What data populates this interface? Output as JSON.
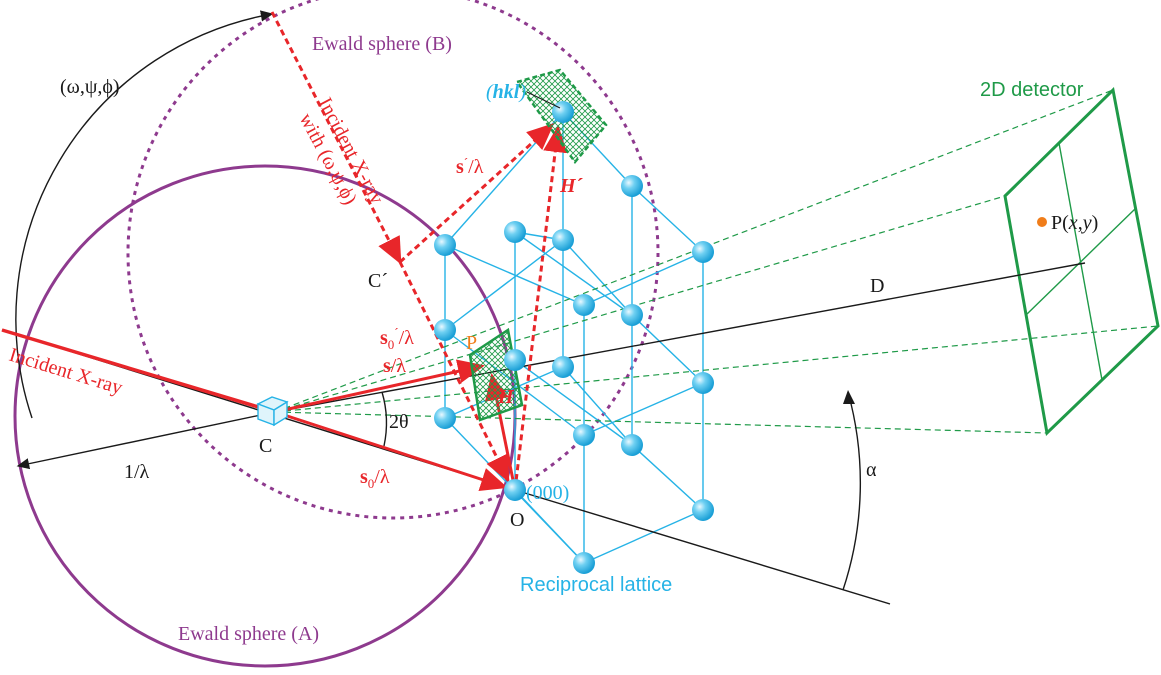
{
  "colors": {
    "ewald_a": "#8e3a8e",
    "ewald_b": "#8e3a8e",
    "incident": "#e8262a",
    "lattice": "#26b3e6",
    "detector": "#1f9a48",
    "black": "#1a1a1a",
    "point_p": "#f07d1a"
  },
  "labels": {
    "ewald_sphere_a": "Ewald sphere (A)",
    "ewald_sphere_b": "Ewald sphere (B)",
    "incident_xray": "Incident X-ray",
    "incident_xray_rotated_line1": "Incident X-ray",
    "incident_xray_rotated_line2": "with (ω,ψ,ϕ)",
    "angles": "(ω,ψ,ϕ)",
    "hkl_open": "(",
    "hkl": "hkl",
    "hkl_close": ")",
    "origin_index": "(000)",
    "origin": "O",
    "center_c": "C",
    "center_c_prime": "C´",
    "inv_lambda": "1/λ",
    "two_theta": "2θ",
    "alpha": "α",
    "distance_d": "D",
    "point_p_small": "P",
    "detector": "2D detector",
    "point_p_prefix": "P(",
    "point_p_x": "x",
    "point_p_comma": ",",
    "point_p_y": "y",
    "point_p_suffix": ")",
    "reciprocal_lattice": "Reciprocal lattice",
    "vec_s": "s",
    "vec_s_tail": "/λ",
    "vec_s0": "s",
    "vec_s0_sub": "0",
    "vec_s0_tail": "/λ",
    "vec_s0p": "s",
    "vec_s0p_sub": "0",
    "vec_s0p_sup": "´",
    "vec_s0p_tail": "/λ",
    "vec_sp": "s",
    "vec_sp_sup": "´",
    "vec_sp_tail": "/λ",
    "vec_h": "H",
    "vec_hp": "H´"
  }
}
